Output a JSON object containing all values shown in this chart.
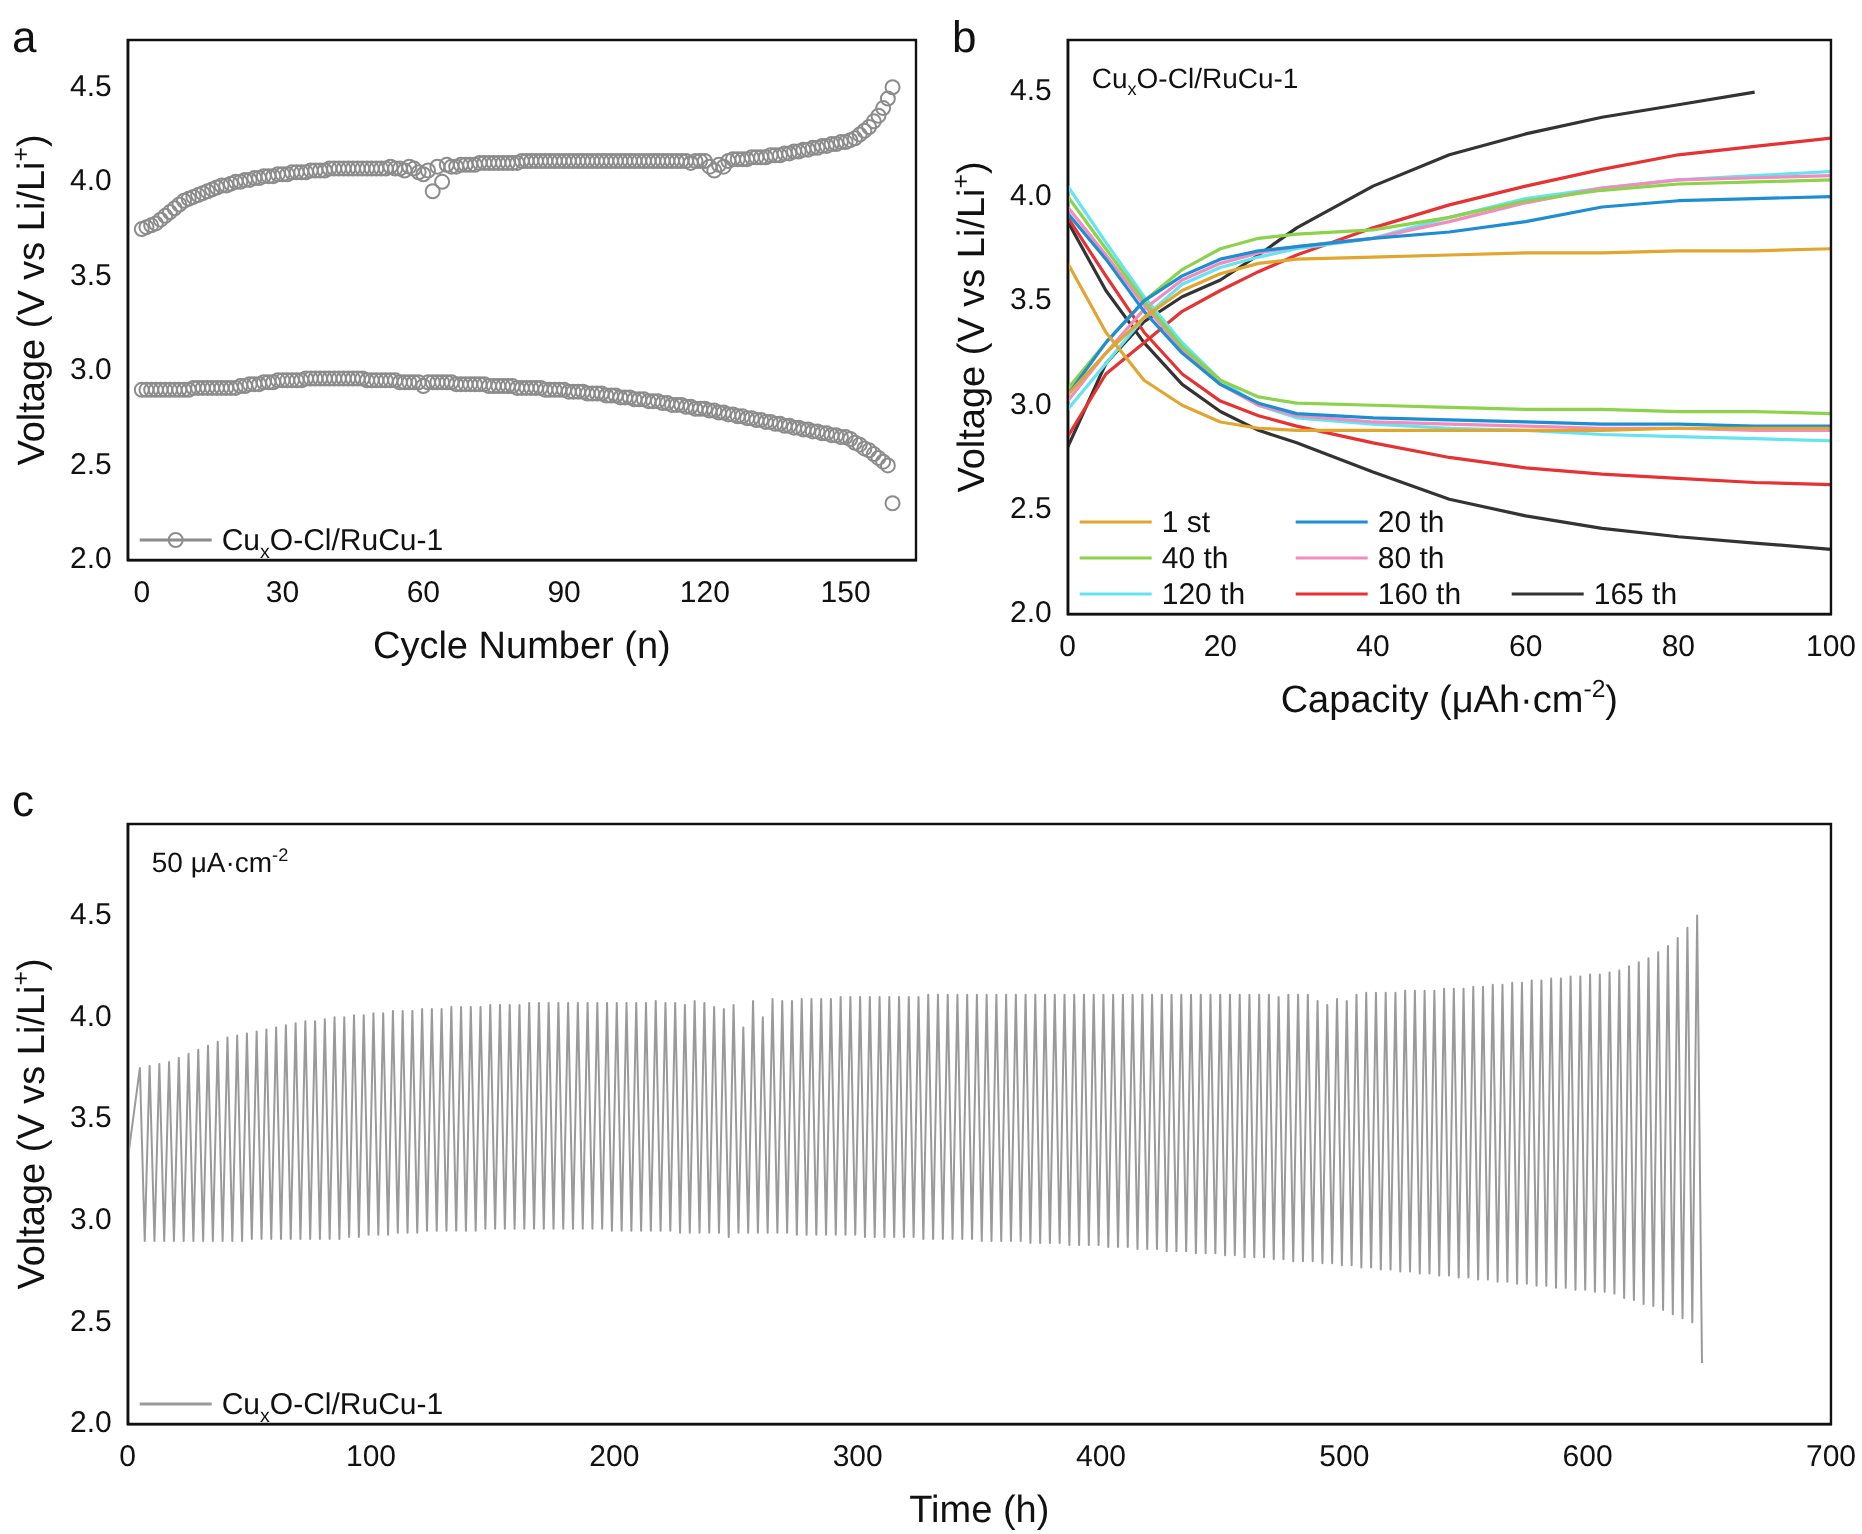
{
  "chart_data": [
    {
      "type": "scatter",
      "title": "a",
      "xlabel": "Cycle Number (n)",
      "ylabel": "Voltage (V vs Li/Li$^{+}$)",
      "marker": "circle",
      "line_style": "solid",
      "legend": "bottom left",
      "grid": false,
      "xlim": [
        -3,
        165
      ],
      "xticks": [
        0,
        30,
        60,
        90,
        120,
        150
      ],
      "ylim": [
        2,
        4.75
      ],
      "yticks": [
        {
          "value": 2,
          "label": "2.0"
        },
        {
          "value": 2.5,
          "label": "2.5"
        },
        {
          "value": 3,
          "label": "3.0"
        },
        {
          "value": 3.5,
          "label": "3.5"
        },
        {
          "value": 4,
          "label": "4.0"
        },
        {
          "value": 4.5,
          "label": "4.5"
        }
      ],
      "x": [
        0,
        1,
        2,
        3,
        4,
        5,
        6,
        7,
        8,
        9,
        10,
        11,
        12,
        13,
        14,
        15,
        16,
        17,
        18,
        19,
        20,
        21,
        22,
        23,
        24,
        25,
        26,
        27,
        28,
        29,
        30,
        31,
        32,
        33,
        34,
        35,
        36,
        37,
        38,
        39,
        40,
        41,
        42,
        43,
        44,
        45,
        46,
        47,
        48,
        49,
        50,
        51,
        52,
        53,
        54,
        55,
        56,
        57,
        58,
        59,
        60,
        61,
        62,
        63,
        64,
        65,
        66,
        67,
        68,
        69,
        70,
        71,
        72,
        73,
        74,
        75,
        76,
        77,
        78,
        79,
        80,
        81,
        82,
        83,
        84,
        85,
        86,
        87,
        88,
        89,
        90,
        91,
        92,
        93,
        94,
        95,
        96,
        97,
        98,
        99,
        100,
        101,
        102,
        103,
        104,
        105,
        106,
        107,
        108,
        109,
        110,
        111,
        112,
        113,
        114,
        115,
        116,
        117,
        118,
        119,
        120,
        121,
        122,
        123,
        124,
        125,
        126,
        127,
        128,
        129,
        130,
        131,
        132,
        133,
        134,
        135,
        136,
        137,
        138,
        139,
        140,
        141,
        142,
        143,
        144,
        145,
        146,
        147,
        148,
        149,
        150,
        151,
        152,
        153,
        154,
        155,
        156,
        157,
        158,
        159,
        160
      ],
      "series": [
        {
          "name": "Cu$_{x}$O-Cl/RuCu-1",
          "color": "#8c8c8c",
          "values": [
            3.75,
            3.76,
            3.77,
            3.78,
            3.8,
            3.82,
            3.84,
            3.86,
            3.88,
            3.9,
            3.91,
            3.92,
            3.93,
            3.94,
            3.95,
            3.96,
            3.97,
            3.98,
            3.98,
            3.99,
            4.0,
            4.0,
            4.01,
            4.01,
            4.02,
            4.02,
            4.03,
            4.03,
            4.03,
            4.04,
            4.04,
            4.04,
            4.05,
            4.05,
            4.05,
            4.05,
            4.06,
            4.06,
            4.06,
            4.06,
            4.07,
            4.07,
            4.07,
            4.07,
            4.07,
            4.07,
            4.07,
            4.07,
            4.07,
            4.07,
            4.07,
            4.07,
            4.07,
            4.08,
            4.07,
            4.07,
            4.06,
            4.08,
            4.07,
            4.05,
            4.04,
            4.06,
            3.95,
            4.08,
            4.0,
            4.09,
            4.08,
            4.08,
            4.09,
            4.09,
            4.09,
            4.09,
            4.1,
            4.1,
            4.1,
            4.1,
            4.1,
            4.1,
            4.1,
            4.1,
            4.1,
            4.11,
            4.11,
            4.11,
            4.11,
            4.11,
            4.11,
            4.11,
            4.11,
            4.11,
            4.11,
            4.11,
            4.11,
            4.11,
            4.11,
            4.11,
            4.11,
            4.11,
            4.11,
            4.11,
            4.11,
            4.11,
            4.11,
            4.11,
            4.11,
            4.11,
            4.11,
            4.11,
            4.11,
            4.11,
            4.11,
            4.11,
            4.11,
            4.11,
            4.11,
            4.11,
            4.11,
            4.1,
            4.11,
            4.11,
            4.11,
            4.08,
            4.06,
            4.09,
            4.08,
            4.11,
            4.12,
            4.12,
            4.12,
            4.12,
            4.13,
            4.13,
            4.13,
            4.13,
            4.14,
            4.14,
            4.14,
            4.15,
            4.15,
            4.16,
            4.16,
            4.17,
            4.17,
            4.18,
            4.18,
            4.19,
            4.19,
            4.2,
            4.2,
            4.21,
            4.21,
            4.22,
            4.23,
            4.25,
            4.27,
            4.29,
            4.32,
            4.35,
            4.39,
            4.44,
            4.5
          ]
        },
        {
          "color": "#8c8c8c",
          "values": [
            2.9,
            2.9,
            2.9,
            2.9,
            2.9,
            2.9,
            2.9,
            2.9,
            2.9,
            2.9,
            2.9,
            2.91,
            2.91,
            2.91,
            2.91,
            2.91,
            2.91,
            2.91,
            2.91,
            2.91,
            2.91,
            2.92,
            2.92,
            2.93,
            2.93,
            2.93,
            2.94,
            2.94,
            2.94,
            2.95,
            2.95,
            2.95,
            2.95,
            2.95,
            2.95,
            2.96,
            2.96,
            2.96,
            2.96,
            2.96,
            2.96,
            2.96,
            2.96,
            2.96,
            2.96,
            2.96,
            2.96,
            2.96,
            2.95,
            2.95,
            2.95,
            2.95,
            2.95,
            2.95,
            2.95,
            2.94,
            2.94,
            2.94,
            2.94,
            2.94,
            2.92,
            2.94,
            2.94,
            2.94,
            2.94,
            2.94,
            2.94,
            2.93,
            2.93,
            2.93,
            2.93,
            2.93,
            2.93,
            2.93,
            2.92,
            2.92,
            2.92,
            2.92,
            2.92,
            2.92,
            2.91,
            2.91,
            2.91,
            2.91,
            2.91,
            2.91,
            2.9,
            2.9,
            2.9,
            2.9,
            2.9,
            2.89,
            2.89,
            2.89,
            2.89,
            2.88,
            2.88,
            2.88,
            2.88,
            2.87,
            2.87,
            2.87,
            2.86,
            2.86,
            2.86,
            2.85,
            2.85,
            2.85,
            2.84,
            2.84,
            2.84,
            2.83,
            2.83,
            2.82,
            2.82,
            2.82,
            2.81,
            2.81,
            2.8,
            2.8,
            2.8,
            2.79,
            2.79,
            2.78,
            2.78,
            2.77,
            2.77,
            2.76,
            2.76,
            2.75,
            2.75,
            2.74,
            2.74,
            2.73,
            2.73,
            2.72,
            2.72,
            2.71,
            2.71,
            2.7,
            2.7,
            2.69,
            2.69,
            2.68,
            2.68,
            2.67,
            2.67,
            2.66,
            2.66,
            2.65,
            2.65,
            2.64,
            2.62,
            2.61,
            2.59,
            2.58,
            2.56,
            2.54,
            2.52,
            2.5,
            2.3
          ]
        }
      ]
    },
    {
      "type": "line",
      "title": "b",
      "xlabel": "Capacity (μAh·cm$^{-2}$)",
      "ylabel": "Voltage (V vs Li/Li$^{+}$)",
      "marker": "none",
      "line_style": "solid",
      "legend": "bottom left",
      "grid": false,
      "annotations": [
        "Cu$_{x}$O-Cl/RuCu-1"
      ],
      "xlim": [
        0,
        100
      ],
      "xticks": [
        0,
        20,
        40,
        60,
        80,
        100
      ],
      "ylim": [
        2,
        4.75
      ],
      "yticks": [
        {
          "value": 2,
          "label": "2.0"
        },
        {
          "value": 2.5,
          "label": "2.5"
        },
        {
          "value": 3,
          "label": "3.0"
        },
        {
          "value": 3.5,
          "label": "3.5"
        },
        {
          "value": 4,
          "label": "4.0"
        },
        {
          "value": 4.5,
          "label": "4.5"
        }
      ],
      "x": [
        0,
        5,
        10,
        15,
        20,
        25,
        30,
        40,
        50,
        60,
        70,
        80,
        90,
        100,
        null,
        0,
        5,
        10,
        15,
        20,
        25,
        30,
        40,
        50,
        60,
        70,
        80,
        90,
        100
      ],
      "series": [
        {
          "name": "1 st",
          "color": "#e0a630",
          "values": [
            3.68,
            3.35,
            3.12,
            3.0,
            2.92,
            2.89,
            2.88,
            2.88,
            2.88,
            2.88,
            2.88,
            2.89,
            2.89,
            2.89,
            null,
            3.05,
            3.25,
            3.42,
            3.55,
            3.63,
            3.68,
            3.7,
            3.71,
            3.72,
            3.73,
            3.73,
            3.74,
            3.74,
            3.75
          ]
        },
        {
          "name": "20 th",
          "color": "#1e8ed2",
          "values": [
            3.92,
            3.7,
            3.45,
            3.25,
            3.1,
            3.01,
            2.96,
            2.94,
            2.93,
            2.92,
            2.91,
            2.91,
            2.9,
            2.9,
            null,
            3.05,
            3.3,
            3.5,
            3.62,
            3.7,
            3.74,
            3.76,
            3.8,
            3.83,
            3.88,
            3.95,
            3.98,
            3.99,
            4.0
          ]
        },
        {
          "name": "40 th",
          "color": "#8cd24b",
          "values": [
            4.0,
            3.75,
            3.5,
            3.28,
            3.12,
            3.04,
            3.01,
            3.0,
            2.99,
            2.98,
            2.98,
            2.97,
            2.97,
            2.96,
            null,
            3.08,
            3.3,
            3.5,
            3.65,
            3.75,
            3.8,
            3.82,
            3.84,
            3.9,
            3.98,
            4.03,
            4.06,
            4.07,
            4.08
          ]
        },
        {
          "name": "80 th",
          "color": "#f08cbe",
          "values": [
            3.95,
            3.72,
            3.48,
            3.27,
            3.1,
            3.0,
            2.95,
            2.92,
            2.91,
            2.9,
            2.89,
            2.89,
            2.88,
            2.88,
            null,
            3.02,
            3.25,
            3.46,
            3.6,
            3.68,
            3.73,
            3.76,
            3.8,
            3.88,
            3.97,
            4.04,
            4.08,
            4.09,
            4.1
          ]
        },
        {
          "name": "120 th",
          "color": "#64e4f0",
          "values": [
            4.05,
            3.78,
            3.52,
            3.3,
            3.12,
            3.0,
            2.94,
            2.91,
            2.89,
            2.88,
            2.86,
            2.85,
            2.84,
            2.83,
            null,
            2.98,
            3.2,
            3.42,
            3.58,
            3.66,
            3.71,
            3.75,
            3.8,
            3.9,
            3.99,
            4.04,
            4.08,
            4.1,
            4.12
          ]
        },
        {
          "name": "160 th",
          "color": "#e63232",
          "values": [
            3.9,
            3.62,
            3.35,
            3.15,
            3.02,
            2.95,
            2.9,
            2.82,
            2.75,
            2.7,
            2.67,
            2.65,
            2.63,
            2.62,
            null,
            2.85,
            3.15,
            3.3,
            3.45,
            3.55,
            3.64,
            3.72,
            3.85,
            3.96,
            4.05,
            4.13,
            4.2,
            4.24,
            4.28
          ]
        },
        {
          "name": "165 th",
          "color": "#333333",
          "x": [
            0,
            5,
            10,
            15,
            20,
            25,
            30,
            40,
            50,
            60,
            70,
            80,
            90,
            100,
            null,
            0,
            5,
            10,
            15,
            20,
            25,
            30,
            40,
            50,
            60,
            70,
            80,
            90
          ],
          "values": [
            3.88,
            3.55,
            3.3,
            3.1,
            2.97,
            2.88,
            2.82,
            2.68,
            2.55,
            2.47,
            2.41,
            2.37,
            2.34,
            2.31,
            null,
            2.8,
            3.2,
            3.4,
            3.52,
            3.6,
            3.72,
            3.85,
            4.05,
            4.2,
            4.3,
            4.38,
            4.44,
            4.5
          ]
        }
      ]
    },
    {
      "type": "line",
      "title": "c",
      "xlabel": "Time (h)",
      "ylabel": "Voltage (V vs Li/Li$^{+}$)",
      "marker": "none",
      "line_style": "solid",
      "legend": "bottom left",
      "grid": false,
      "annotations": [
        "50 μA·cm$^{-2}$"
      ],
      "xlim": [
        0,
        700
      ],
      "xticks": [
        0,
        100,
        200,
        300,
        400,
        500,
        600,
        700
      ],
      "ylim": [
        2,
        4.95
      ],
      "yticks": [
        {
          "value": 2,
          "label": "2.0"
        },
        {
          "value": 2.5,
          "label": "2.5"
        },
        {
          "value": 3,
          "label": "3.0"
        },
        {
          "value": 3.5,
          "label": "3.5"
        },
        {
          "value": 4,
          "label": "4.0"
        },
        {
          "value": 4.5,
          "label": "4.5"
        }
      ],
      "x": [
        0,
        5,
        7,
        9,
        11,
        13,
        15,
        17,
        19,
        21,
        23,
        25,
        27,
        29,
        31,
        33,
        35,
        37,
        39,
        41,
        43,
        45,
        47,
        49,
        51,
        53,
        55,
        57,
        59,
        61,
        63,
        65,
        67,
        69,
        71,
        73,
        75,
        77,
        79,
        81,
        83,
        85,
        87,
        89,
        91,
        93,
        95,
        97,
        99,
        101,
        103,
        105,
        107,
        109,
        111,
        113,
        115,
        117,
        119,
        121,
        123,
        125,
        127,
        129,
        131,
        133,
        135,
        137,
        139,
        141,
        143,
        145,
        147,
        149,
        151,
        153,
        155,
        157,
        159,
        161,
        163,
        165,
        167,
        169,
        171,
        173,
        175,
        177,
        179,
        181,
        183,
        185,
        187,
        189,
        191,
        193,
        195,
        197,
        199,
        201,
        203,
        205,
        207,
        209,
        211,
        213,
        215,
        217,
        219,
        221,
        223,
        225,
        227,
        229,
        231,
        233,
        235,
        237,
        239,
        241,
        243,
        245,
        247,
        249,
        251,
        253,
        255,
        257,
        259,
        261,
        263,
        265,
        267,
        269,
        271,
        273,
        275,
        277,
        279,
        281,
        283,
        285,
        287,
        289,
        291,
        293,
        295,
        297,
        299,
        301,
        303,
        305,
        307,
        309,
        311,
        313,
        315,
        317,
        319,
        321,
        323,
        325,
        327,
        329,
        331,
        333,
        335,
        337,
        339,
        341,
        343,
        345,
        347,
        349,
        351,
        353,
        355,
        357,
        359,
        361,
        363,
        365,
        367,
        369,
        371,
        373,
        375,
        377,
        379,
        381,
        383,
        385,
        387,
        389,
        391,
        393,
        395,
        397,
        399,
        401,
        403,
        405,
        407,
        409,
        411,
        413,
        415,
        417,
        419,
        421,
        423,
        425,
        427,
        429,
        431,
        433,
        435,
        437,
        439,
        441,
        443,
        445,
        447,
        449,
        451,
        453,
        455,
        457,
        459,
        461,
        463,
        465,
        467,
        469,
        471,
        473,
        475,
        477,
        479,
        481,
        483,
        485,
        487,
        489,
        491,
        493,
        495,
        497,
        499,
        501,
        503,
        505,
        507,
        509,
        511,
        513,
        515,
        517,
        519,
        521,
        523,
        525,
        527,
        529,
        531,
        533,
        535,
        537,
        539,
        541,
        543,
        545,
        547,
        549,
        551,
        553,
        555,
        557,
        559,
        561,
        563,
        565,
        567,
        569,
        571,
        573,
        575,
        577,
        579,
        581,
        583,
        585,
        587,
        589,
        591,
        593,
        595,
        597,
        599,
        601,
        603,
        605,
        607,
        609,
        611,
        613,
        615,
        617,
        619,
        621,
        623,
        625,
        627,
        629,
        631,
        633,
        635,
        637,
        639,
        641,
        643,
        645,
        647
      ],
      "series": [
        {
          "name": "Cu$_{x}$O-Cl/RuCu-1",
          "color": "#9a9a9a",
          "values": [
            3.3,
            3.75,
            2.9,
            3.76,
            2.9,
            3.77,
            2.9,
            3.78,
            2.9,
            3.8,
            2.9,
            3.82,
            2.9,
            3.84,
            2.9,
            3.86,
            2.9,
            3.88,
            2.9,
            3.9,
            2.9,
            3.91,
            2.9,
            3.92,
            2.91,
            3.93,
            2.91,
            3.94,
            2.91,
            3.95,
            2.91,
            3.96,
            2.91,
            3.97,
            2.91,
            3.98,
            2.91,
            3.98,
            2.91,
            3.99,
            2.91,
            4.0,
            2.91,
            4.0,
            2.92,
            4.01,
            2.92,
            4.01,
            2.93,
            4.02,
            2.93,
            4.02,
            2.93,
            4.03,
            2.94,
            4.03,
            2.94,
            4.03,
            2.94,
            4.04,
            2.95,
            4.04,
            2.95,
            4.04,
            2.95,
            4.05,
            2.95,
            4.05,
            2.95,
            4.05,
            2.95,
            4.05,
            2.96,
            4.06,
            2.96,
            4.06,
            2.96,
            4.06,
            2.96,
            4.06,
            2.96,
            4.07,
            2.96,
            4.07,
            2.96,
            4.07,
            2.96,
            4.07,
            2.96,
            4.07,
            2.96,
            4.07,
            2.96,
            4.07,
            2.96,
            4.07,
            2.96,
            4.07,
            2.95,
            4.07,
            2.95,
            4.07,
            2.95,
            4.07,
            2.95,
            4.07,
            2.95,
            4.08,
            2.95,
            4.07,
            2.95,
            4.07,
            2.94,
            4.06,
            2.94,
            4.08,
            2.94,
            4.07,
            2.94,
            4.05,
            2.94,
            4.04,
            2.92,
            4.06,
            2.94,
            3.95,
            2.94,
            4.08,
            2.94,
            4.0,
            2.94,
            4.09,
            2.94,
            4.08,
            2.94,
            4.08,
            2.93,
            4.09,
            2.93,
            4.09,
            2.93,
            4.09,
            2.93,
            4.09,
            2.93,
            4.1,
            2.93,
            4.1,
            2.93,
            4.1,
            2.92,
            4.1,
            2.92,
            4.1,
            2.92,
            4.1,
            2.92,
            4.1,
            2.92,
            4.1,
            2.92,
            4.1,
            2.91,
            4.11,
            2.91,
            4.11,
            2.91,
            4.11,
            2.91,
            4.11,
            2.91,
            4.11,
            2.91,
            4.11,
            2.9,
            4.11,
            2.9,
            4.11,
            2.9,
            4.11,
            2.9,
            4.11,
            2.9,
            4.11,
            2.89,
            4.11,
            2.89,
            4.11,
            2.89,
            4.11,
            2.89,
            4.11,
            2.88,
            4.11,
            2.88,
            4.11,
            2.88,
            4.11,
            2.88,
            4.11,
            2.87,
            4.11,
            2.87,
            4.11,
            2.87,
            4.11,
            2.86,
            4.11,
            2.86,
            4.11,
            2.86,
            4.11,
            2.85,
            4.11,
            2.85,
            4.11,
            2.85,
            4.11,
            2.84,
            4.11,
            2.84,
            4.11,
            2.84,
            4.11,
            2.83,
            4.11,
            2.83,
            4.11,
            2.82,
            4.11,
            2.82,
            4.11,
            2.82,
            4.11,
            2.81,
            4.1,
            2.81,
            4.11,
            2.8,
            4.11,
            2.8,
            4.11,
            2.8,
            4.08,
            2.79,
            4.06,
            2.79,
            4.09,
            2.78,
            4.08,
            2.78,
            4.11,
            2.77,
            4.12,
            2.77,
            4.12,
            2.76,
            4.12,
            2.76,
            4.12,
            2.75,
            4.13,
            2.75,
            4.13,
            2.74,
            4.13,
            2.74,
            4.13,
            2.73,
            4.14,
            2.73,
            4.14,
            2.72,
            4.14,
            2.72,
            4.15,
            2.71,
            4.15,
            2.71,
            4.16,
            2.7,
            4.16,
            2.7,
            4.17,
            2.69,
            4.17,
            2.69,
            4.18,
            2.68,
            4.18,
            2.68,
            4.19,
            2.67,
            4.19,
            2.67,
            4.2,
            2.66,
            4.2,
            2.66,
            4.21,
            2.65,
            4.21,
            2.65,
            4.22,
            2.64,
            4.23,
            2.62,
            4.25,
            2.61,
            4.27,
            2.59,
            4.29,
            2.58,
            4.32,
            2.56,
            4.35,
            2.54,
            4.39,
            2.52,
            4.44,
            2.5,
            4.5,
            2.3
          ]
        }
      ]
    }
  ]
}
